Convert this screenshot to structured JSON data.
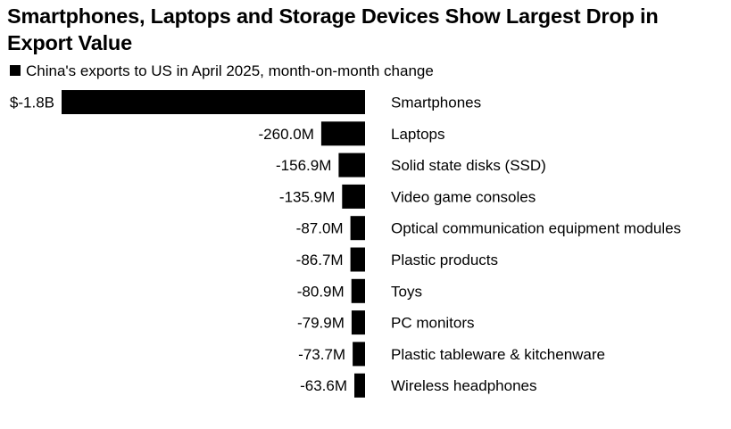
{
  "title": "Smartphones, Laptops and Storage Devices Show Largest Drop in Export Value",
  "legend_label": "China's exports to US in April 2025, month-on-month change",
  "colors": {
    "bar": "#000000",
    "text": "#000000",
    "background": "#ffffff"
  },
  "chart_data": {
    "type": "bar",
    "orientation": "horizontal",
    "title": "Smartphones, Laptops and Storage Devices Show Largest Drop in Export Value",
    "series": [
      {
        "name": "China's exports to US in April 2025, month-on-month change",
        "values": [
          -1800,
          -260.0,
          -156.9,
          -135.9,
          -87.0,
          -86.7,
          -80.9,
          -79.9,
          -73.7,
          -63.6
        ]
      }
    ],
    "unit": "US$ million",
    "categories": [
      "Smartphones",
      "Laptops",
      "Solid state disks (SSD)",
      "Video game consoles",
      "Optical communication equipment modules",
      "Plastic products",
      "Toys",
      "PC monitors",
      "Plastic tableware & kitchenware",
      "Wireless headphones"
    ],
    "data_labels": [
      "$-1.8B",
      "-260.0M",
      "-156.9M",
      "-135.9M",
      "-87.0M",
      "-86.7M",
      "-80.9M",
      "-79.9M",
      "-73.7M",
      "-63.6M"
    ],
    "xlim": [
      -1800,
      0
    ],
    "grid": false,
    "legend_position": "top-left"
  }
}
